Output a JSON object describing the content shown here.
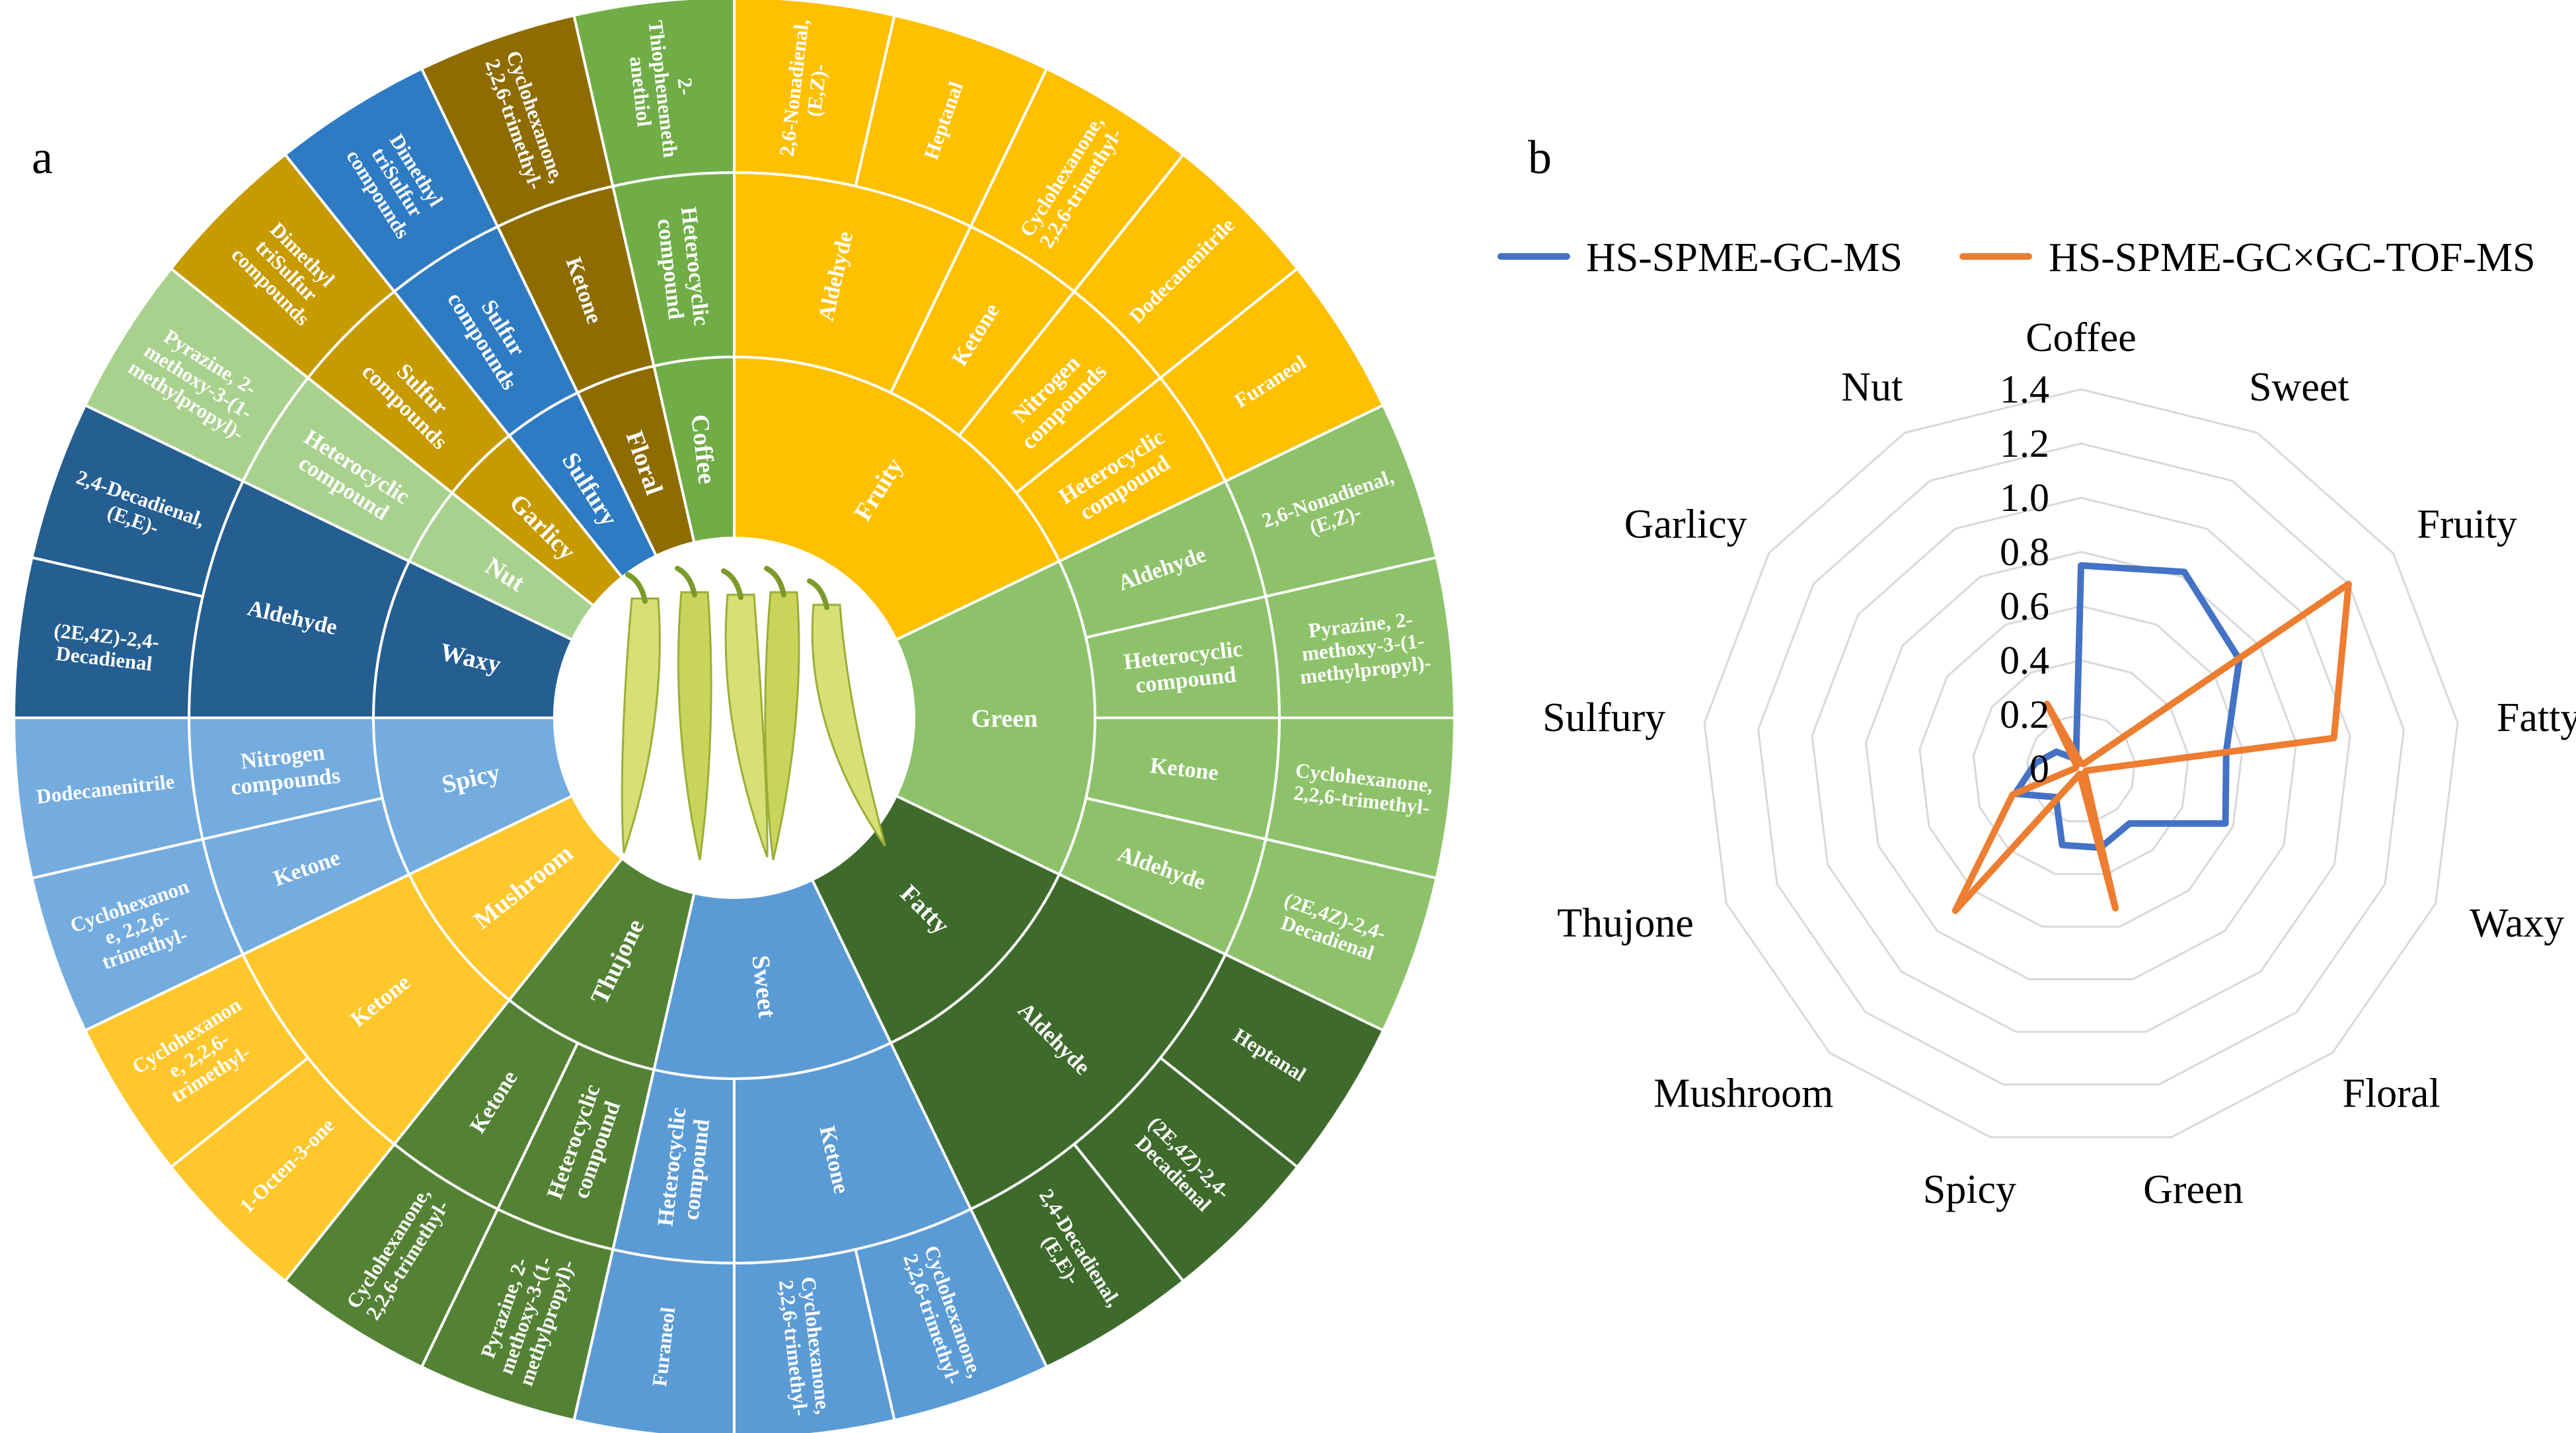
{
  "figure_labels": {
    "a": "a",
    "b": "b"
  },
  "chart_data": [
    {
      "type": "sunburst",
      "levels": [
        "odor",
        "compound class",
        "compound"
      ],
      "categories": [
        {
          "name": "Fruity",
          "color": "#FFC000",
          "groups": [
            {
              "name": [
                "Aldehyde"
              ],
              "compounds": [
                [
                  "2,6-Nonadienal,",
                  "(E,Z)-"
                ],
                [
                  "Heptanal"
                ]
              ]
            },
            {
              "name": [
                "Ketone"
              ],
              "compounds": [
                [
                  "Cyclohexanone,",
                  "2,2,6-trimethyl-"
                ]
              ]
            },
            {
              "name": [
                "Nitrogen",
                "compounds"
              ],
              "compounds": [
                [
                  "Dodecanenitrile"
                ]
              ]
            },
            {
              "name": [
                "Heterocyclic",
                "compound"
              ],
              "compounds": [
                [
                  "Furaneol"
                ]
              ]
            }
          ]
        },
        {
          "name": "Green",
          "color": "#8DC26A",
          "groups": [
            {
              "name": [
                "Aldehyde"
              ],
              "compounds": [
                [
                  "2,6-Nonadienal,",
                  "(E,Z)-"
                ]
              ]
            },
            {
              "name": [
                "Heterocyclic",
                "compound"
              ],
              "compounds": [
                [
                  "Pyrazine, 2-",
                  "methoxy-3-(1-",
                  "methylpropyl)-"
                ]
              ]
            },
            {
              "name": [
                "Ketone"
              ],
              "compounds": [
                [
                  "Cyclohexanone,",
                  "2,2,6-trimethyl-"
                ]
              ]
            },
            {
              "name": [
                "Aldehyde"
              ],
              "compounds": [
                [
                  "(2E,4Z)-2,4-",
                  "Decadienal"
                ]
              ]
            }
          ]
        },
        {
          "name": "Fatty",
          "color": "#3E6B2C",
          "groups": [
            {
              "name": [
                "Aldehyde"
              ],
              "compounds": [
                [
                  "Heptanal"
                ],
                [
                  "(2E,4Z)-2,4-",
                  "Decadienal"
                ],
                [
                  "2,4-Decadienal,",
                  "(E,E)-"
                ]
              ]
            }
          ]
        },
        {
          "name": "Sweet",
          "color": "#5B9BD5",
          "groups": [
            {
              "name": [
                "Ketone"
              ],
              "compounds": [
                [
                  "Cyclohexanone,",
                  "2,2,6-trimethyl-"
                ],
                [
                  "Cyclohexanone,",
                  "2,2,6-trimethyl-"
                ]
              ]
            },
            {
              "name": [
                "Heterocyclic",
                "compound"
              ],
              "compounds": [
                [
                  "Furaneol"
                ]
              ]
            }
          ]
        },
        {
          "name": "Thujone",
          "color": "#548235",
          "groups": [
            {
              "name": [
                "Heterocyclic",
                "compound"
              ],
              "compounds": [
                [
                  "Pyrazine, 2-",
                  "methoxy-3-(1-",
                  "methylpropyl)-"
                ]
              ]
            },
            {
              "name": [
                "Ketone"
              ],
              "compounds": [
                [
                  "Cyclohexanone,",
                  "2,2,6-trimethyl-"
                ]
              ]
            }
          ]
        },
        {
          "name": "Mushroom",
          "color": "#FFC72C",
          "groups": [
            {
              "name": [
                "Ketone"
              ],
              "compounds": [
                [
                  "1-Octen-3-one"
                ],
                [
                  "Cyclohexanon",
                  "e, 2,2,6-",
                  "trimethyl-"
                ]
              ]
            }
          ]
        },
        {
          "name": "Spicy",
          "color": "#74ACDF",
          "groups": [
            {
              "name": [
                "Ketone"
              ],
              "compounds": [
                [
                  "Cyclohexanon",
                  "e, 2,2,6-",
                  "trimethyl-"
                ]
              ]
            },
            {
              "name": [
                "Nitrogen",
                "compounds"
              ],
              "compounds": [
                [
                  "Dodecanenitrile"
                ]
              ]
            }
          ]
        },
        {
          "name": "Waxy",
          "color": "#255E91",
          "groups": [
            {
              "name": [
                "Aldehyde"
              ],
              "compounds": [
                [
                  "(2E,4Z)-2,4-",
                  "Decadienal"
                ],
                [
                  "2,4-Decadienal,",
                  "(E,E)-"
                ]
              ]
            }
          ]
        },
        {
          "name": "Nut",
          "color": "#A9D18E",
          "groups": [
            {
              "name": [
                "Heterocyclic",
                "compound"
              ],
              "compounds": [
                [
                  "Pyrazine, 2-",
                  "methoxy-3-(1-",
                  "methylpropyl)-"
                ]
              ]
            }
          ]
        },
        {
          "name": "Garlicy",
          "color": "#C79A00",
          "groups": [
            {
              "name": [
                "Sulfur",
                "compounds"
              ],
              "compounds": [
                [
                  "Dimethyl",
                  "triSulfur",
                  "compounds"
                ]
              ]
            }
          ]
        },
        {
          "name": "Sulfury",
          "color": "#2E7BC4",
          "groups": [
            {
              "name": [
                "Sulfur",
                "compounds"
              ],
              "compounds": [
                [
                  "Dimethyl",
                  "triSulfur",
                  "compounds"
                ]
              ]
            }
          ]
        },
        {
          "name": "Floral",
          "color": "#8F6C00",
          "groups": [
            {
              "name": [
                "Ketone"
              ],
              "compounds": [
                [
                  "Cyclohexanone,",
                  "2,2,6-trimethyl-"
                ]
              ]
            }
          ]
        },
        {
          "name": "Coffee",
          "color": "#70AD47",
          "groups": [
            {
              "name": [
                "Heterocyclic",
                "compound"
              ],
              "compounds": [
                [
                  "2-",
                  "Thiophenemeth",
                  "anethiol"
                ]
              ]
            }
          ]
        }
      ]
    },
    {
      "type": "radar",
      "axes": [
        "Coffee",
        "Sweet",
        "Fruity",
        "Fatty",
        "Waxy",
        "Floral",
        "Green",
        "Spicy",
        "Mushroom",
        "Thujone",
        "Sulfury",
        "Garlicy",
        "Nut"
      ],
      "rlim": [
        0,
        1.4
      ],
      "ticks": [
        "0",
        "0.2",
        "0.4",
        "0.6",
        "0.8",
        "1.0",
        "1.2",
        "1.4"
      ],
      "grid": true,
      "legend": "top",
      "series": [
        {
          "name": "HS-SPME-GC-MS",
          "color": "#4472C4",
          "values": [
            0.75,
            0.82,
            0.71,
            0.54,
            0.57,
            0.27,
            0.3,
            0.29,
            0.14,
            0.26,
            0.17,
            0.11,
            0.04
          ]
        },
        {
          "name": "HS-SPME-GC×GC-TOF-MS",
          "color": "#ED7D31",
          "values": [
            0.02,
            0.02,
            1.2,
            0.94,
            0.02,
            0.02,
            0.53,
            0.02,
            0.7,
            0.27,
            0.02,
            0.02,
            0.27
          ]
        }
      ]
    }
  ]
}
